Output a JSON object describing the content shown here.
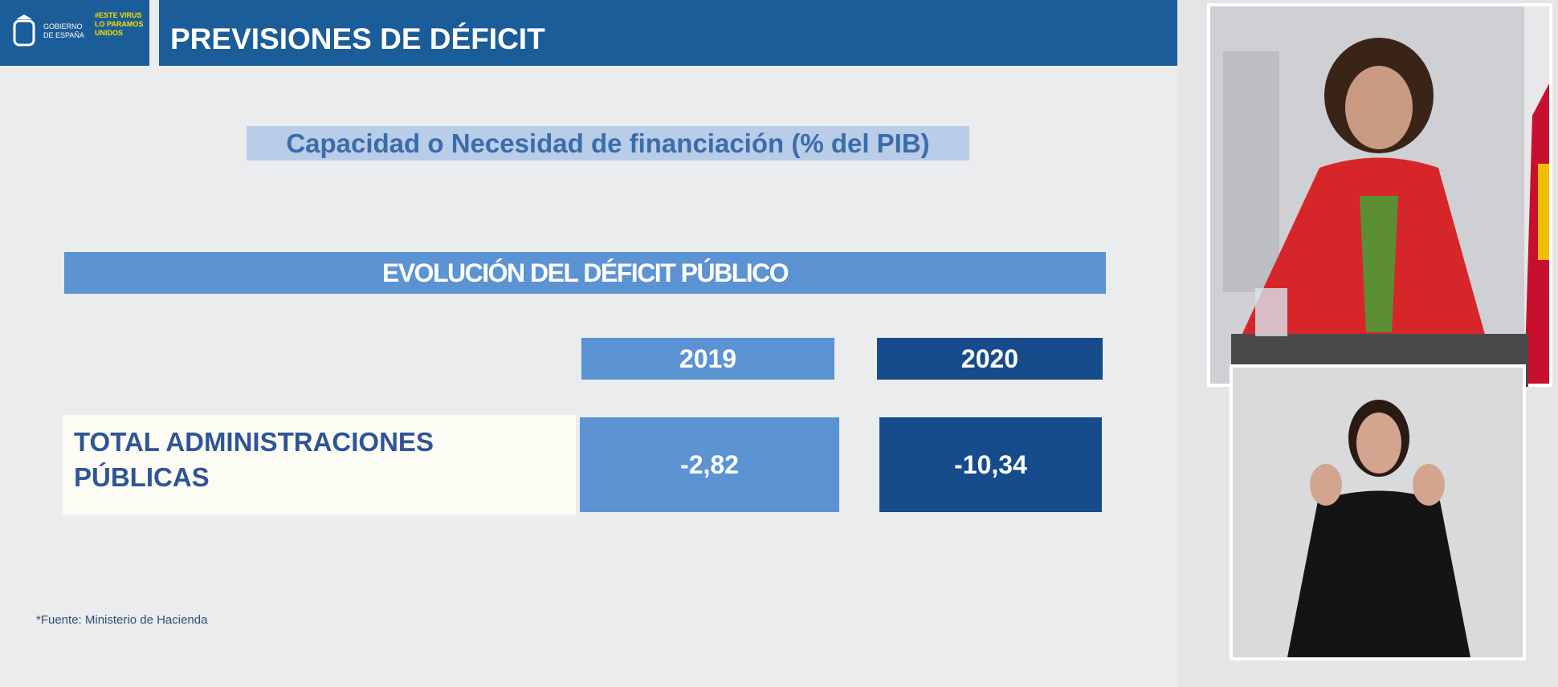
{
  "header": {
    "logo_text": "GOBIERNO DE ESPAÑA",
    "campaign_text": "#ESTE VIRUS LO PARAMOS UNIDOS",
    "title": "PREVISIONES DE DÉFICIT"
  },
  "subtitle": "Capacidad o Necesidad de financiación (% del PIB)",
  "table": {
    "title": "EVOLUCIÓN DEL DÉFICIT PÚBLICO",
    "columns": [
      "2019",
      "2020"
    ],
    "rows": [
      {
        "label": "TOTAL ADMINISTRACIONES PÚBLICAS",
        "values": [
          "-2,82",
          "-10,34"
        ]
      }
    ]
  },
  "footnote": "*Fuente: Ministerio de Hacienda"
}
